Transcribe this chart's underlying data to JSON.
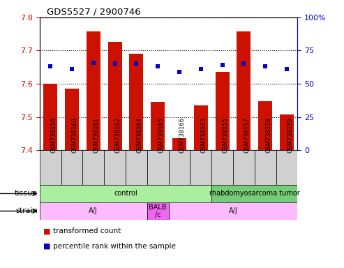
{
  "title": "GDS5527 / 2900746",
  "samples": [
    "GSM738156",
    "GSM738160",
    "GSM738161",
    "GSM738162",
    "GSM738164",
    "GSM738165",
    "GSM738166",
    "GSM738163",
    "GSM738155",
    "GSM738157",
    "GSM738158",
    "GSM738159"
  ],
  "bar_values": [
    7.6,
    7.585,
    7.758,
    7.727,
    7.691,
    7.545,
    7.435,
    7.535,
    7.635,
    7.758,
    7.548,
    7.508
  ],
  "dot_values": [
    63,
    61,
    66,
    65,
    65,
    63,
    59,
    61,
    64,
    65,
    63,
    61
  ],
  "ymin": 7.4,
  "ymax": 7.8,
  "y2min": 0,
  "y2max": 100,
  "yticks": [
    7.4,
    7.5,
    7.6,
    7.7,
    7.8
  ],
  "y2ticks": [
    0,
    25,
    50,
    75,
    100
  ],
  "bar_color": "#cc1100",
  "dot_color": "#0000cc",
  "tissue_groups": [
    {
      "label": "control",
      "start": 0,
      "end": 8,
      "color": "#aaeea a"
    },
    {
      "label": "rhabdomyosarcoma tumor",
      "start": 8,
      "end": 12,
      "color": "#77cc77"
    }
  ],
  "strain_groups": [
    {
      "label": "A/J",
      "start": 0,
      "end": 5,
      "color": "#ffbbff"
    },
    {
      "label": "BALB\n/c",
      "start": 5,
      "end": 6,
      "color": "#ee66ee"
    },
    {
      "label": "A/J",
      "start": 6,
      "end": 12,
      "color": "#ffbbff"
    }
  ],
  "legend_bar_label": "transformed count",
  "legend_dot_label": "percentile rank within the sample",
  "bar_base": 7.4,
  "ylabel_left_color": "#cc0000",
  "ylabel_right_color": "#0000cc"
}
